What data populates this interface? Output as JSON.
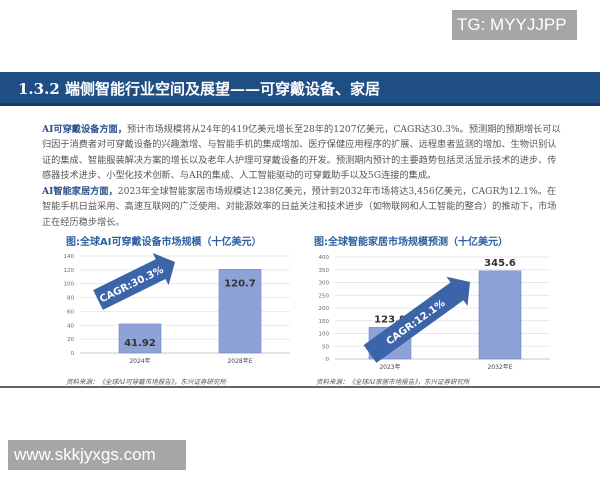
{
  "watermark_top": "TG: MYYJJPP",
  "watermark_bottom": "www.skkjyxgs.com",
  "header": {
    "title": "1.3.2 端侧智能行业空间及展望——可穿戴设备、家居"
  },
  "paragraphs": [
    {
      "lead": "AI可穿戴设备方面，",
      "text": "预计市场规模将从24年的419亿美元增长至28年的1207亿美元，CAGR达30.3%。预测期的预期增长可以归因于消费者对可穿戴设备的兴趣激增、与智能手机的集成增加、医疗保健应用程序的扩展、远程患者监测的增加、生物识别认证的集成、智能服装解决方案的增长以及老年人护理可穿戴设备的开发。预测期内预计的主要趋势包括灵活显示技术的进步、传感器技术进步、小型化技术创新、与AR的集成、人工智能驱动的可穿戴助手以及5G连接的集成。"
    },
    {
      "lead": "AI智能家居方面，",
      "text": "2023年全球智能家居市场规模达1238亿美元，预计到2032年市场将达3,456亿美元，CAGR为12.1%。在智能手机日益采用、高速互联网的广泛使用、对能源效率的日益关注和技术进步（如物联网和人工智能的整合）的推动下，市场正在经历稳步增长。"
    }
  ],
  "chart_data": [
    {
      "type": "bar",
      "title": "图:全球AI可穿戴设备市场规模（十亿美元）",
      "categories": [
        "2024年",
        "2028年E"
      ],
      "values": [
        41.92,
        120.7
      ],
      "labels": [
        "41.92",
        "120.7"
      ],
      "ylim": [
        0,
        140
      ],
      "yticks": [
        "0",
        "20",
        "40",
        "60",
        "80",
        "100",
        "120",
        "140"
      ],
      "annotation": "CAGR:30.3%",
      "grid": true,
      "bar_color": "#8ea2d8",
      "source": "资料来源：《全球AI可穿戴市场报告》，东兴证券研究所"
    },
    {
      "type": "bar",
      "title": "图:全球智能家居市场规模预测（十亿美元）",
      "categories": [
        "2023年",
        "2032年E"
      ],
      "values": [
        123.8,
        345.6
      ],
      "labels": [
        "123.8",
        "345.6"
      ],
      "ylim": [
        0,
        400
      ],
      "yticks": [
        "0",
        "50",
        "100",
        "150",
        "200",
        "250",
        "300",
        "350",
        "400"
      ],
      "annotation": "CAGR:12.1%",
      "grid": true,
      "bar_color": "#8ea2d8",
      "source": "资料来源：《全球AI家居市场报告》，东兴证券研究所"
    }
  ]
}
